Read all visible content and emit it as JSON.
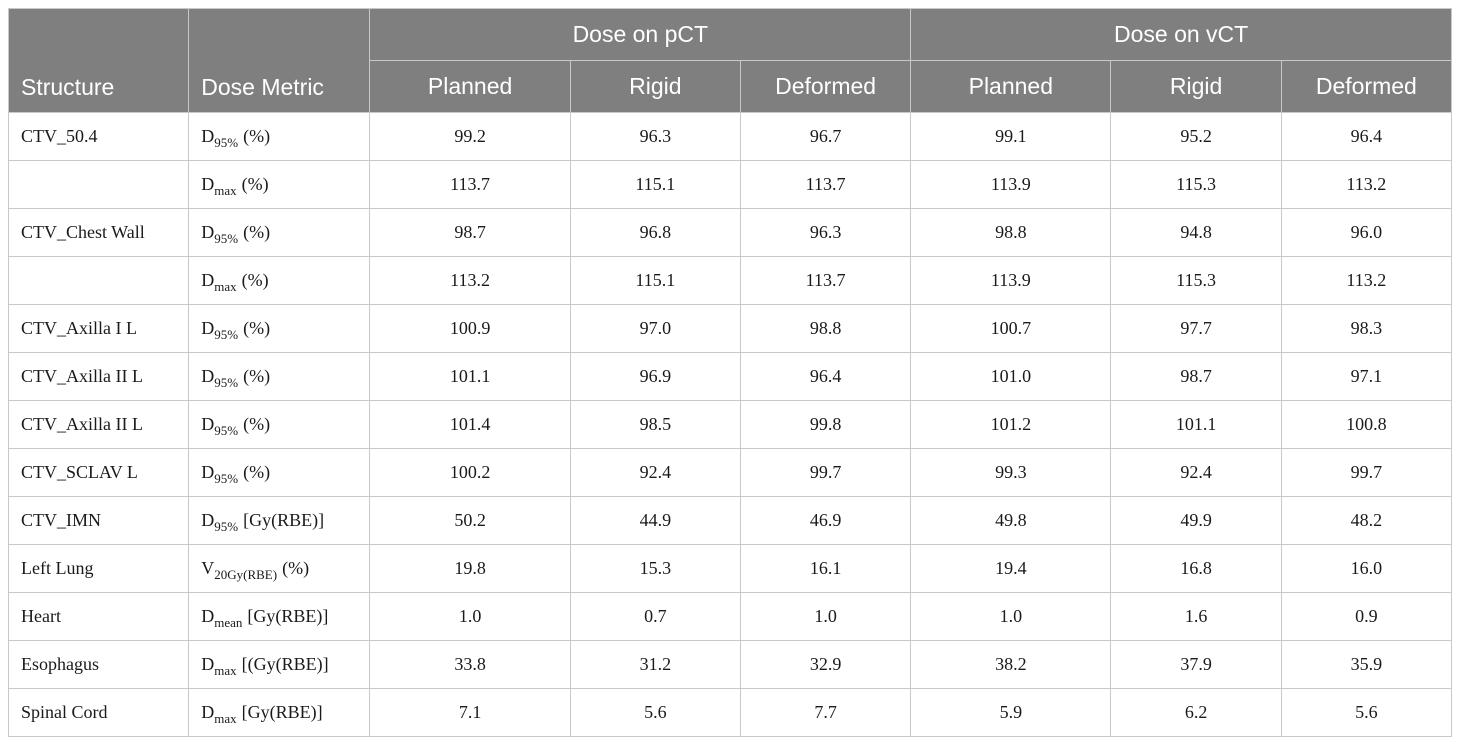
{
  "header": {
    "structure": "Structure",
    "dose_metric": "Dose Metric",
    "group_pct": "Dose on pCT",
    "group_vct": "Dose on vCT",
    "planned": "Planned",
    "rigid": "Rigid",
    "deformed": "Deformed"
  },
  "rows": [
    {
      "structure": "CTV_50.4",
      "metric": {
        "base": "D",
        "sub": "95%",
        "unit": "(%)"
      },
      "values": [
        "99.2",
        "96.3",
        "96.7",
        "99.1",
        "95.2",
        "96.4"
      ]
    },
    {
      "structure": "",
      "metric": {
        "base": "D",
        "sub": "max",
        "unit": "(%)"
      },
      "values": [
        "113.7",
        "115.1",
        "113.7",
        "113.9",
        "115.3",
        "113.2"
      ]
    },
    {
      "structure": "CTV_Chest Wall",
      "metric": {
        "base": "D",
        "sub": "95%",
        "unit": "(%)"
      },
      "values": [
        "98.7",
        "96.8",
        "96.3",
        "98.8",
        "94.8",
        "96.0"
      ]
    },
    {
      "structure": "",
      "metric": {
        "base": "D",
        "sub": "max",
        "unit": "(%)"
      },
      "values": [
        "113.2",
        "115.1",
        "113.7",
        "113.9",
        "115.3",
        "113.2"
      ]
    },
    {
      "structure": "CTV_Axilla I L",
      "metric": {
        "base": "D",
        "sub": "95%",
        "unit": "(%)"
      },
      "values": [
        "100.9",
        "97.0",
        "98.8",
        "100.7",
        "97.7",
        "98.3"
      ]
    },
    {
      "structure": "CTV_Axilla II L",
      "metric": {
        "base": "D",
        "sub": "95%",
        "unit": "(%)"
      },
      "values": [
        "101.1",
        "96.9",
        "96.4",
        "101.0",
        "98.7",
        "97.1"
      ]
    },
    {
      "structure": "CTV_Axilla II L",
      "metric": {
        "base": "D",
        "sub": "95%",
        "unit": "(%)"
      },
      "values": [
        "101.4",
        "98.5",
        "99.8",
        "101.2",
        "101.1",
        "100.8"
      ]
    },
    {
      "structure": "CTV_SCLAV L",
      "metric": {
        "base": "D",
        "sub": "95%",
        "unit": "(%)"
      },
      "values": [
        "100.2",
        "92.4",
        "99.7",
        "99.3",
        "92.4",
        "99.7"
      ]
    },
    {
      "structure": "CTV_IMN",
      "metric": {
        "base": "D",
        "sub": "95%",
        "unit": "[Gy(RBE)]"
      },
      "values": [
        "50.2",
        "44.9",
        "46.9",
        "49.8",
        "49.9",
        "48.2"
      ]
    },
    {
      "structure": "Left Lung",
      "metric": {
        "base": "V",
        "sub": "20Gy(RBE)",
        "unit": "(%)"
      },
      "values": [
        "19.8",
        "15.3",
        "16.1",
        "19.4",
        "16.8",
        "16.0"
      ]
    },
    {
      "structure": "Heart",
      "metric": {
        "base": "D",
        "sub": "mean",
        "unit": "[Gy(RBE)]"
      },
      "values": [
        "1.0",
        "0.7",
        "1.0",
        "1.0",
        "1.6",
        "0.9"
      ]
    },
    {
      "structure": "Esophagus",
      "metric": {
        "base": "D",
        "sub": "max",
        "unit": "[(Gy(RBE)]"
      },
      "values": [
        "33.8",
        "31.2",
        "32.9",
        "38.2",
        "37.9",
        "35.9"
      ]
    },
    {
      "structure": "Spinal Cord",
      "metric": {
        "base": "D",
        "sub": "max",
        "unit": "[Gy(RBE)]"
      },
      "values": [
        "7.1",
        "5.6",
        "7.7",
        "5.9",
        "6.2",
        "5.6"
      ]
    }
  ]
}
